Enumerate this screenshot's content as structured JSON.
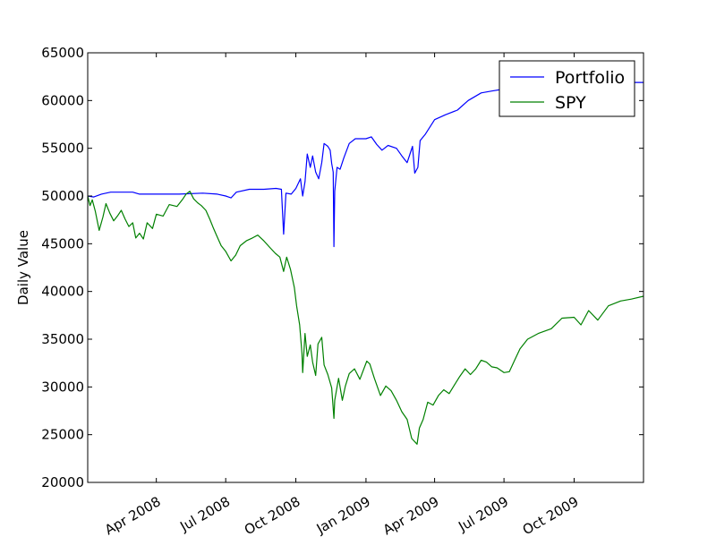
{
  "chart_data": {
    "type": "line",
    "title": "",
    "xlabel": "",
    "ylabel": "Daily Value",
    "x_range": [
      "2008-01-02",
      "2009-12-31"
    ],
    "ylim": [
      20000,
      65000
    ],
    "yticks": [
      20000,
      25000,
      30000,
      35000,
      40000,
      45000,
      50000,
      55000,
      60000,
      65000
    ],
    "xticks": [
      {
        "date": "2008-04-01",
        "label": "Apr 2008"
      },
      {
        "date": "2008-07-01",
        "label": "Jul 2008"
      },
      {
        "date": "2008-10-01",
        "label": "Oct 2008"
      },
      {
        "date": "2009-01-01",
        "label": "Jan 2009"
      },
      {
        "date": "2009-04-01",
        "label": "Apr 2009"
      },
      {
        "date": "2009-07-01",
        "label": "Jul 2009"
      },
      {
        "date": "2009-10-01",
        "label": "Oct 2009"
      }
    ],
    "grid": false,
    "legend_position": "top-right",
    "series": [
      {
        "name": "Portfolio",
        "color": "#0000ff",
        "points": [
          [
            "2008-01-02",
            50000
          ],
          [
            "2008-01-10",
            49900
          ],
          [
            "2008-01-20",
            50200
          ],
          [
            "2008-02-01",
            50400
          ],
          [
            "2008-02-15",
            50400
          ],
          [
            "2008-03-01",
            50400
          ],
          [
            "2008-03-10",
            50200
          ],
          [
            "2008-04-01",
            50200
          ],
          [
            "2008-05-01",
            50200
          ],
          [
            "2008-06-01",
            50300
          ],
          [
            "2008-06-20",
            50200
          ],
          [
            "2008-07-01",
            50000
          ],
          [
            "2008-07-08",
            49800
          ],
          [
            "2008-07-15",
            50400
          ],
          [
            "2008-08-01",
            50700
          ],
          [
            "2008-08-20",
            50700
          ],
          [
            "2008-09-05",
            50800
          ],
          [
            "2008-09-12",
            50700
          ],
          [
            "2008-09-15",
            46000
          ],
          [
            "2008-09-18",
            50300
          ],
          [
            "2008-09-25",
            50200
          ],
          [
            "2008-10-01",
            50800
          ],
          [
            "2008-10-07",
            51800
          ],
          [
            "2008-10-10",
            50000
          ],
          [
            "2008-10-13",
            51500
          ],
          [
            "2008-10-16",
            54400
          ],
          [
            "2008-10-20",
            53000
          ],
          [
            "2008-10-23",
            54200
          ],
          [
            "2008-10-27",
            52500
          ],
          [
            "2008-10-31",
            51800
          ],
          [
            "2008-11-04",
            53500
          ],
          [
            "2008-11-07",
            55500
          ],
          [
            "2008-11-12",
            55200
          ],
          [
            "2008-11-15",
            54800
          ],
          [
            "2008-11-17",
            53400
          ],
          [
            "2008-11-19",
            52500
          ],
          [
            "2008-11-20",
            44700
          ],
          [
            "2008-11-21",
            50500
          ],
          [
            "2008-11-24",
            53000
          ],
          [
            "2008-11-28",
            52800
          ],
          [
            "2008-12-03",
            54000
          ],
          [
            "2008-12-10",
            55500
          ],
          [
            "2008-12-18",
            56000
          ],
          [
            "2009-01-01",
            56000
          ],
          [
            "2009-01-08",
            56200
          ],
          [
            "2009-01-15",
            55400
          ],
          [
            "2009-01-22",
            54800
          ],
          [
            "2009-01-30",
            55300
          ],
          [
            "2009-02-10",
            55000
          ],
          [
            "2009-02-17",
            54200
          ],
          [
            "2009-02-24",
            53500
          ],
          [
            "2009-03-03",
            55200
          ],
          [
            "2009-03-06",
            52400
          ],
          [
            "2009-03-10",
            53000
          ],
          [
            "2009-03-13",
            55800
          ],
          [
            "2009-03-20",
            56500
          ],
          [
            "2009-04-01",
            58000
          ],
          [
            "2009-04-15",
            58500
          ],
          [
            "2009-05-01",
            59000
          ],
          [
            "2009-05-15",
            60000
          ],
          [
            "2009-06-01",
            60800
          ],
          [
            "2009-06-15",
            61000
          ],
          [
            "2009-07-01",
            61200
          ],
          [
            "2009-07-15",
            61300
          ],
          [
            "2009-08-01",
            61500
          ],
          [
            "2009-09-01",
            61700
          ],
          [
            "2009-10-01",
            61900
          ],
          [
            "2009-11-01",
            61900
          ],
          [
            "2009-12-31",
            61900
          ]
        ]
      },
      {
        "name": "SPY",
        "color": "#008000",
        "points": [
          [
            "2008-01-02",
            50000
          ],
          [
            "2008-01-05",
            49000
          ],
          [
            "2008-01-08",
            49600
          ],
          [
            "2008-01-12",
            48400
          ],
          [
            "2008-01-17",
            46400
          ],
          [
            "2008-01-22",
            47800
          ],
          [
            "2008-01-26",
            49200
          ],
          [
            "2008-01-31",
            48200
          ],
          [
            "2008-02-05",
            47400
          ],
          [
            "2008-02-10",
            47900
          ],
          [
            "2008-02-15",
            48500
          ],
          [
            "2008-02-20",
            47600
          ],
          [
            "2008-02-25",
            46800
          ],
          [
            "2008-03-01",
            47200
          ],
          [
            "2008-03-05",
            45600
          ],
          [
            "2008-03-10",
            46100
          ],
          [
            "2008-03-15",
            45500
          ],
          [
            "2008-03-20",
            47200
          ],
          [
            "2008-03-27",
            46600
          ],
          [
            "2008-04-01",
            48100
          ],
          [
            "2008-04-10",
            47900
          ],
          [
            "2008-04-18",
            49100
          ],
          [
            "2008-04-28",
            48900
          ],
          [
            "2008-05-05",
            49600
          ],
          [
            "2008-05-10",
            50200
          ],
          [
            "2008-05-15",
            50500
          ],
          [
            "2008-05-20",
            49700
          ],
          [
            "2008-05-25",
            49300
          ],
          [
            "2008-05-30",
            49000
          ],
          [
            "2008-06-05",
            48500
          ],
          [
            "2008-06-10",
            47600
          ],
          [
            "2008-06-15",
            46600
          ],
          [
            "2008-06-20",
            45700
          ],
          [
            "2008-06-25",
            44800
          ],
          [
            "2008-07-01",
            44200
          ],
          [
            "2008-07-08",
            43200
          ],
          [
            "2008-07-14",
            43800
          ],
          [
            "2008-07-20",
            44800
          ],
          [
            "2008-07-28",
            45300
          ],
          [
            "2008-08-05",
            45600
          ],
          [
            "2008-08-12",
            45900
          ],
          [
            "2008-08-20",
            45300
          ],
          [
            "2008-08-28",
            44600
          ],
          [
            "2008-09-04",
            44000
          ],
          [
            "2008-09-10",
            43600
          ],
          [
            "2008-09-15",
            42100
          ],
          [
            "2008-09-19",
            43600
          ],
          [
            "2008-09-24",
            42300
          ],
          [
            "2008-09-29",
            40400
          ],
          [
            "2008-10-02",
            38500
          ],
          [
            "2008-10-06",
            36500
          ],
          [
            "2008-10-09",
            33500
          ],
          [
            "2008-10-10",
            31500
          ],
          [
            "2008-10-13",
            35600
          ],
          [
            "2008-10-16",
            33200
          ],
          [
            "2008-10-20",
            34400
          ],
          [
            "2008-10-23",
            32600
          ],
          [
            "2008-10-27",
            31200
          ],
          [
            "2008-10-30",
            34500
          ],
          [
            "2008-11-04",
            35200
          ],
          [
            "2008-11-07",
            32300
          ],
          [
            "2008-11-12",
            31300
          ],
          [
            "2008-11-17",
            29900
          ],
          [
            "2008-11-20",
            26700
          ],
          [
            "2008-11-21",
            28600
          ],
          [
            "2008-11-26",
            30900
          ],
          [
            "2008-12-01",
            28600
          ],
          [
            "2008-12-05",
            30100
          ],
          [
            "2008-12-10",
            31400
          ],
          [
            "2008-12-17",
            31900
          ],
          [
            "2008-12-24",
            30800
          ],
          [
            "2009-01-02",
            32700
          ],
          [
            "2009-01-06",
            32400
          ],
          [
            "2009-01-12",
            30900
          ],
          [
            "2009-01-20",
            29100
          ],
          [
            "2009-01-27",
            30100
          ],
          [
            "2009-02-03",
            29600
          ],
          [
            "2009-02-10",
            28600
          ],
          [
            "2009-02-17",
            27400
          ],
          [
            "2009-02-24",
            26600
          ],
          [
            "2009-03-02",
            24600
          ],
          [
            "2009-03-09",
            24000
          ],
          [
            "2009-03-12",
            25700
          ],
          [
            "2009-03-17",
            26600
          ],
          [
            "2009-03-23",
            28400
          ],
          [
            "2009-03-30",
            28100
          ],
          [
            "2009-04-06",
            29100
          ],
          [
            "2009-04-13",
            29700
          ],
          [
            "2009-04-20",
            29300
          ],
          [
            "2009-04-27",
            30200
          ],
          [
            "2009-05-04",
            31100
          ],
          [
            "2009-05-11",
            31900
          ],
          [
            "2009-05-18",
            31300
          ],
          [
            "2009-05-25",
            31900
          ],
          [
            "2009-06-01",
            32800
          ],
          [
            "2009-06-08",
            32600
          ],
          [
            "2009-06-15",
            32100
          ],
          [
            "2009-06-22",
            32000
          ],
          [
            "2009-07-01",
            31500
          ],
          [
            "2009-07-08",
            31600
          ],
          [
            "2009-07-15",
            32800
          ],
          [
            "2009-07-22",
            34000
          ],
          [
            "2009-08-01",
            35000
          ],
          [
            "2009-08-15",
            35600
          ],
          [
            "2009-09-01",
            36100
          ],
          [
            "2009-09-15",
            37200
          ],
          [
            "2009-10-01",
            37300
          ],
          [
            "2009-10-10",
            36500
          ],
          [
            "2009-10-20",
            38000
          ],
          [
            "2009-11-01",
            37000
          ],
          [
            "2009-11-15",
            38500
          ],
          [
            "2009-12-01",
            39000
          ],
          [
            "2009-12-15",
            39200
          ],
          [
            "2009-12-31",
            39500
          ]
        ]
      }
    ]
  }
}
